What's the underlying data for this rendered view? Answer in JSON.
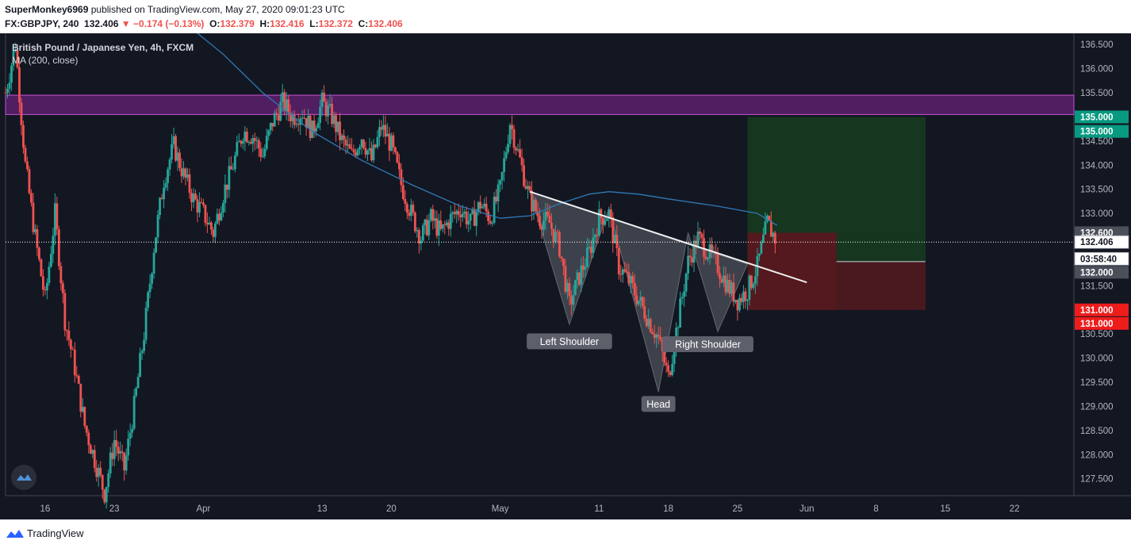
{
  "header": {
    "author": "SuperMonkey6969",
    "published_text": "published on TradingView.com, May 27, 2020 09:01:23 UTC",
    "symbol": "FX:GBPJPY, 240",
    "last": "132.406",
    "change": "−0.174 (−0.13%)",
    "o_label": "O:",
    "o": "132.379",
    "h_label": "H:",
    "h": "132.416",
    "l_label": "L:",
    "l": "132.372",
    "c_label": "C:",
    "c": "132.406"
  },
  "legend": {
    "title": "British Pound / Japanese Yen, 4h, FXCM",
    "indicator": "MA (200, close)"
  },
  "footer": {
    "brand": "TradingView"
  },
  "colors": {
    "up": "#26a69a",
    "down": "#ef5350",
    "ma": "#3179b5",
    "resistance": "#9c27b0",
    "profit": "#1b5e20",
    "loss": "#7f1d1d",
    "background": "#131722"
  },
  "chart_data": {
    "type": "candlestick",
    "ylim": [
      127.15,
      136.7
    ],
    "y_ticks": [
      "127.500",
      "128.000",
      "128.500",
      "129.000",
      "129.500",
      "130.000",
      "130.500",
      "131.000",
      "131.500",
      "132.000",
      "132.500",
      "133.000",
      "133.500",
      "134.000",
      "134.500",
      "135.000",
      "135.500",
      "136.000",
      "136.500"
    ],
    "x_ticks": [
      {
        "label": "16",
        "t": 4
      },
      {
        "label": "23",
        "t": 11
      },
      {
        "label": "Apr",
        "t": 20
      },
      {
        "label": "13",
        "t": 32
      },
      {
        "label": "20",
        "t": 39
      },
      {
        "label": "May",
        "t": 50
      },
      {
        "label": "11",
        "t": 60
      },
      {
        "label": "18",
        "t": 67
      },
      {
        "label": "25",
        "t": 74
      },
      {
        "label": "Jun",
        "t": 81
      },
      {
        "label": "8",
        "t": 88
      },
      {
        "label": "15",
        "t": 95
      },
      {
        "label": "22",
        "t": 102
      }
    ],
    "price_path": [
      [
        0,
        135.5
      ],
      [
        1,
        136.5
      ],
      [
        2,
        134.0
      ],
      [
        3,
        132.5
      ],
      [
        4,
        131.2
      ],
      [
        5,
        133.0
      ],
      [
        6,
        130.8
      ],
      [
        7,
        129.8
      ],
      [
        8,
        128.6
      ],
      [
        9,
        127.9
      ],
      [
        10,
        127.2
      ],
      [
        11,
        128.3
      ],
      [
        12,
        127.7
      ],
      [
        13,
        129.0
      ],
      [
        14,
        130.5
      ],
      [
        15,
        132.3
      ],
      [
        16,
        133.7
      ],
      [
        17,
        134.4
      ],
      [
        18,
        133.8
      ],
      [
        19,
        133.3
      ],
      [
        20,
        133.0
      ],
      [
        21,
        132.6
      ],
      [
        22,
        133.4
      ],
      [
        23,
        134.0
      ],
      [
        24,
        134.7
      ],
      [
        25,
        134.6
      ],
      [
        26,
        134.2
      ],
      [
        27,
        134.9
      ],
      [
        28,
        135.3
      ],
      [
        29,
        135.0
      ],
      [
        30,
        135.1
      ],
      [
        31,
        134.7
      ],
      [
        32,
        135.3
      ],
      [
        33,
        135.0
      ],
      [
        34,
        134.5
      ],
      [
        35,
        134.2
      ],
      [
        36,
        134.6
      ],
      [
        37,
        134.1
      ],
      [
        38,
        134.8
      ],
      [
        39,
        134.4
      ],
      [
        40,
        133.6
      ],
      [
        41,
        133.0
      ],
      [
        42,
        132.5
      ],
      [
        43,
        132.9
      ],
      [
        44,
        132.6
      ],
      [
        45,
        132.9
      ],
      [
        46,
        133.1
      ],
      [
        47,
        132.8
      ],
      [
        48,
        133.2
      ],
      [
        49,
        132.9
      ],
      [
        50,
        133.5
      ],
      [
        51,
        134.9
      ],
      [
        52,
        134.1
      ],
      [
        53,
        133.3
      ],
      [
        54,
        132.9
      ],
      [
        55,
        132.8
      ],
      [
        56,
        132.3
      ],
      [
        57,
        131.1
      ],
      [
        58,
        131.7
      ],
      [
        59,
        132.2
      ],
      [
        60,
        132.9
      ],
      [
        61,
        133.0
      ],
      [
        62,
        131.9
      ],
      [
        63,
        131.6
      ],
      [
        64,
        131.2
      ],
      [
        65,
        130.8
      ],
      [
        66,
        130.4
      ],
      [
        67,
        129.6
      ],
      [
        68,
        130.8
      ],
      [
        69,
        132.0
      ],
      [
        70,
        132.5
      ],
      [
        71,
        132.2
      ],
      [
        72,
        131.9
      ],
      [
        73,
        131.5
      ],
      [
        74,
        131.2
      ],
      [
        75,
        131.4
      ],
      [
        76,
        131.9
      ],
      [
        77,
        132.8
      ],
      [
        78,
        132.4
      ]
    ],
    "moving_average_200": [
      [
        19,
        136.8
      ],
      [
        22,
        136.3
      ],
      [
        26,
        135.5
      ],
      [
        31,
        134.7
      ],
      [
        36,
        134.1
      ],
      [
        41,
        133.6
      ],
      [
        46,
        133.15
      ],
      [
        50,
        132.9
      ],
      [
        53,
        132.95
      ],
      [
        56,
        133.2
      ],
      [
        59,
        133.4
      ],
      [
        61,
        133.45
      ],
      [
        64,
        133.4
      ],
      [
        67,
        133.3
      ],
      [
        72,
        133.15
      ],
      [
        76,
        133.0
      ],
      [
        78,
        132.75
      ]
    ],
    "resistance_zone": [
      135.05,
      135.45
    ],
    "current_price": 132.406,
    "trendline": [
      [
        53,
        133.45
      ],
      [
        81,
        131.57
      ]
    ],
    "head_and_shoulders": [
      [
        53,
        133.45
      ],
      [
        57,
        130.7
      ],
      [
        61,
        133.1
      ],
      [
        66,
        129.3
      ],
      [
        69,
        132.6
      ],
      [
        72,
        130.55
      ],
      [
        75,
        131.95
      ]
    ],
    "position": {
      "t_start": 75,
      "t_entry_end": 84,
      "t_end": 93,
      "entry": 132.6,
      "target": 135.0,
      "stop": 131.0,
      "current": 132.0
    },
    "pattern_labels": [
      {
        "text": "Left Shoulder",
        "t": 57,
        "price": 130.35
      },
      {
        "text": "Head",
        "t": 66,
        "price": 129.05
      },
      {
        "text": "Right Shoulder",
        "t": 71,
        "price": 130.29
      }
    ],
    "price_tags": [
      {
        "text": "135.000",
        "price": 135.0,
        "color": "#089981"
      },
      {
        "text": "135.000",
        "price": 134.7,
        "color": "#089981"
      },
      {
        "text": "132.600",
        "price": 132.6,
        "color": "#4a4f5a"
      },
      {
        "text": "132.406",
        "price": 132.406,
        "color": "#ffffff",
        "fg": "#131722"
      },
      {
        "text": "03:58:40",
        "price": 132.06,
        "color": "#ffffff",
        "fg": "#131722"
      },
      {
        "text": "132.000",
        "price": 131.78,
        "color": "#4a4f5a"
      },
      {
        "text": "131.000",
        "price": 131.0,
        "color": "#ef1c1c"
      },
      {
        "text": "131.000",
        "price": 130.72,
        "color": "#ef1c1c"
      }
    ]
  }
}
